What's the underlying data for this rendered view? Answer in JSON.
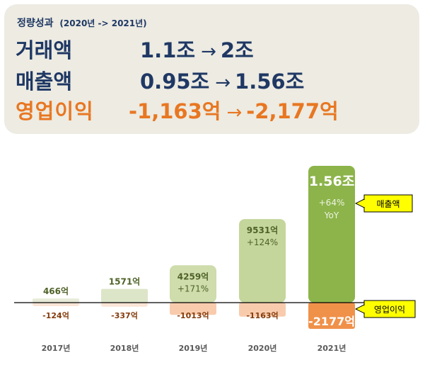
{
  "summary": {
    "title": "정량성과",
    "range": "(2020년 -> 2021년)",
    "rows": [
      {
        "label": "거래액",
        "from": "1.1조",
        "arrow": "→",
        "to": "2조"
      },
      {
        "label": "매출액",
        "from": "0.95조",
        "arrow": "→",
        "to": "1.56조"
      },
      {
        "label": "영업이익",
        "from": "-1,163억",
        "arrow": "→",
        "to": "-2,177억"
      }
    ]
  },
  "colors": {
    "revenue": [
      "#e6ead7",
      "#dde5c9",
      "#cfdcac",
      "#c4d69b",
      "#8cb44a"
    ],
    "revenue_text": "#4f6228",
    "loss_light": "#fbe5d6",
    "loss_mid": "#f8cbad",
    "loss_strong": "#f0914a",
    "loss_text": "#843c0c",
    "tag_fill": "#ffff00",
    "axis": "#000000"
  },
  "chart_data": {
    "type": "bar",
    "categories": [
      "2017년",
      "2018년",
      "2019년",
      "2020년",
      "2021년"
    ],
    "series": [
      {
        "name": "매출액",
        "values": [
          466,
          1571,
          4259,
          9531,
          15600
        ],
        "labels": [
          "466억",
          "1571억",
          "4259억",
          "9531억",
          "1.56조"
        ],
        "sublabels": [
          "",
          "",
          "+171%",
          "+124%",
          "+64%"
        ],
        "sublabels2": [
          "",
          "",
          "",
          "",
          "YoY"
        ]
      },
      {
        "name": "영업이익",
        "values": [
          -124,
          -337,
          -1013,
          -1163,
          -2177
        ],
        "labels": [
          "-124억",
          "-337억",
          "-1013억",
          "-1163억",
          "-2177억"
        ]
      }
    ],
    "legend_tags": [
      "매출액",
      "영업이익"
    ]
  }
}
